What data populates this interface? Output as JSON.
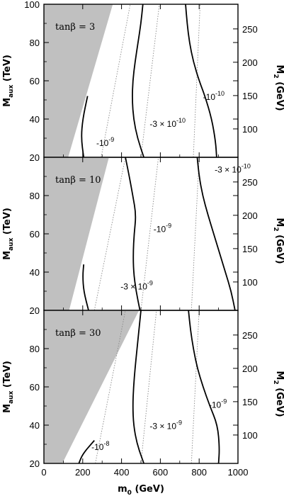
{
  "chart_data": [
    {
      "type": "line",
      "panel_label": "tanβ=3",
      "xlim": [
        0,
        1000
      ],
      "ylim": [
        20,
        100
      ],
      "y_ticks": [
        "20",
        "40",
        "60",
        "80",
        "100"
      ],
      "y2_ticks": [
        "100",
        "150",
        "200",
        "250"
      ],
      "excluded_region": [
        [
          0,
          20
        ],
        [
          0,
          100
        ],
        [
          355,
          100
        ],
        [
          125,
          20
        ]
      ],
      "contours": [
        {
          "label": "-10⁻⁹",
          "points": [
            [
              205,
              20
            ],
            [
              192,
              30
            ],
            [
              200,
              40
            ],
            [
              225,
              52
            ]
          ]
        },
        {
          "label": "-3×10⁻¹⁰",
          "points": [
            [
              515,
              20
            ],
            [
              482,
              30
            ],
            [
              462,
              40
            ],
            [
              455,
              50
            ],
            [
              458,
              60
            ],
            [
              470,
              70
            ],
            [
              485,
              80
            ],
            [
              500,
              90
            ],
            [
              510,
              100
            ]
          ]
        },
        {
          "label": "-10⁻¹⁰",
          "points": [
            [
              890,
              20
            ],
            [
              885,
              28
            ],
            [
              865,
              40
            ],
            [
              830,
              52
            ],
            [
              800,
              60
            ],
            [
              770,
              70
            ],
            [
              750,
              80
            ],
            [
              738,
              90
            ],
            [
              730,
              100
            ]
          ]
        }
      ],
      "dotted_lines": [
        [
          [
            295,
            20
          ],
          [
            445,
            100
          ]
        ],
        [
          [
            500,
            20
          ],
          [
            595,
            100
          ]
        ],
        [
          [
            770,
            20
          ],
          [
            805,
            100
          ]
        ]
      ],
      "contour_label_positions": [
        [
          270,
          26
        ],
        [
          545,
          36
        ],
        [
          820,
          50
        ]
      ]
    },
    {
      "type": "line",
      "panel_label": "tanβ=10",
      "xlim": [
        0,
        1000
      ],
      "ylim": [
        20,
        100
      ],
      "y_ticks": [
        "20",
        "40",
        "60",
        "80",
        "100"
      ],
      "y2_ticks": [
        "100",
        "150",
        "200",
        "250"
      ],
      "excluded_region": [
        [
          0,
          20
        ],
        [
          0,
          100
        ],
        [
          335,
          100
        ],
        [
          130,
          20
        ]
      ],
      "contours": [
        {
          "label": "-3×10⁻⁹",
          "points": [
            [
              230,
              20
            ],
            [
              205,
              30
            ],
            [
              200,
              38
            ],
            [
              205,
              44
            ]
          ]
        },
        {
          "label": "-10⁻⁹",
          "points": [
            [
              495,
              20
            ],
            [
              475,
              30
            ],
            [
              462,
              40
            ],
            [
              460,
              50
            ],
            [
              465,
              60
            ],
            [
              475,
              70
            ],
            [
              458,
              80
            ],
            [
              440,
              90
            ],
            [
              420,
              100
            ]
          ]
        },
        {
          "label": "-3×10⁻¹⁰",
          "points": [
            [
              985,
              20
            ],
            [
              965,
              30
            ],
            [
              935,
              40
            ],
            [
              905,
              50
            ],
            [
              875,
              60
            ],
            [
              845,
              70
            ],
            [
              818,
              80
            ],
            [
              800,
              90
            ],
            [
              790,
              100
            ]
          ]
        }
      ],
      "dotted_lines": [
        [
          [
            260,
            20
          ],
          [
            420,
            100
          ]
        ],
        [
          [
            500,
            20
          ],
          [
            590,
            100
          ]
        ],
        [
          [
            760,
            20
          ],
          [
            800,
            100
          ]
        ]
      ],
      "contour_label_positions": [
        [
          395,
          31
        ],
        [
          565,
          61
        ],
        [
          880,
          92
        ]
      ]
    },
    {
      "type": "line",
      "panel_label": "tanβ=30",
      "xlim": [
        0,
        1000
      ],
      "ylim": [
        20,
        100
      ],
      "y_ticks": [
        "20",
        "40",
        "60",
        "80",
        "100"
      ],
      "y2_ticks": [
        "100",
        "150",
        "200",
        "250"
      ],
      "excluded_region": [
        [
          0,
          20
        ],
        [
          0,
          100
        ],
        [
          490,
          100
        ],
        [
          95,
          20
        ]
      ],
      "contours": [
        {
          "label": "-10⁻⁸",
          "points": [
            [
              180,
              20
            ],
            [
              200,
              25
            ],
            [
              260,
              32
            ]
          ]
        },
        {
          "label": "-3×10⁻⁹",
          "points": [
            [
              515,
              20
            ],
            [
              480,
              30
            ],
            [
              462,
              40
            ],
            [
              458,
              50
            ],
            [
              462,
              60
            ],
            [
              470,
              70
            ],
            [
              480,
              80
            ],
            [
              490,
              90
            ],
            [
              500,
              100
            ]
          ]
        },
        {
          "label": "-10⁻⁹",
          "points": [
            [
              900,
              20
            ],
            [
              905,
              28
            ],
            [
              895,
              40
            ],
            [
              855,
              50
            ],
            [
              820,
              60
            ],
            [
              790,
              70
            ],
            [
              770,
              80
            ],
            [
              755,
              90
            ],
            [
              745,
              100
            ]
          ]
        }
      ],
      "dotted_lines": [
        [
          [
            265,
            20
          ],
          [
            420,
            100
          ]
        ],
        [
          [
            500,
            20
          ],
          [
            580,
            100
          ]
        ],
        [
          [
            760,
            20
          ],
          [
            800,
            100
          ]
        ]
      ],
      "contour_label_positions": [
        [
          245,
          27
        ],
        [
          545,
          38
        ],
        [
          850,
          49
        ]
      ]
    }
  ],
  "axes": {
    "xlabel": "m₀ (GeV)",
    "ylabel": "Maux (TeV)",
    "ylabel_main": "M",
    "ylabel_sub": "aux",
    "ylabel_rest": " (TeV)",
    "y2label_main": "M",
    "y2label_sub": "2",
    "y2label_rest": " (GeV)",
    "x_ticks": [
      "0",
      "200",
      "400",
      "600",
      "800",
      "1000"
    ]
  },
  "colors": {
    "excluded": "#c0c0c0",
    "contour": "#000000",
    "dotted": "#888888"
  }
}
